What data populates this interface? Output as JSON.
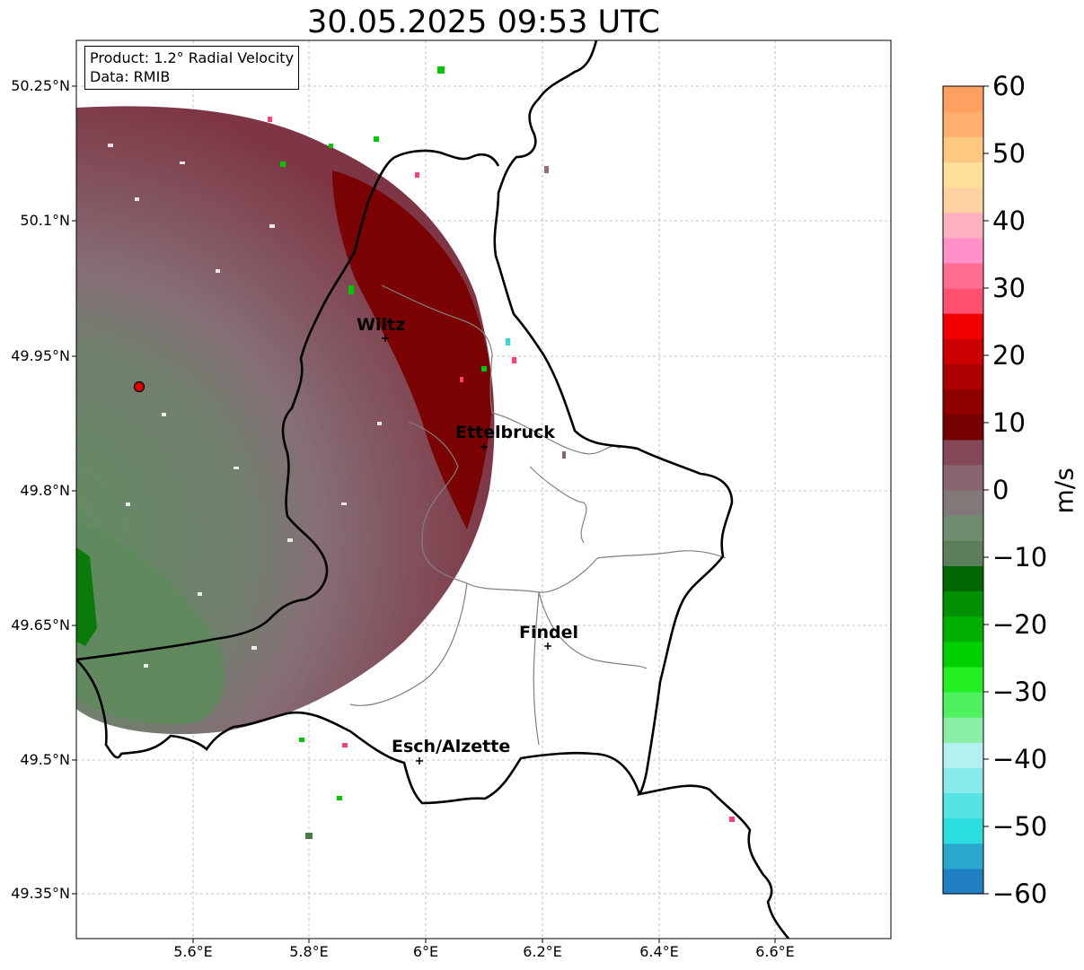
{
  "title": "30.05.2025 09:53 UTC",
  "info": {
    "product": "Product: 1.2° Radial Velocity",
    "data": "Data: RMIB"
  },
  "axes": {
    "lat_ticks": [
      "50.25°N",
      "50.1°N",
      "49.95°N",
      "49.8°N",
      "49.65°N",
      "49.5°N",
      "49.35°N"
    ],
    "lon_ticks": [
      "5.6°E",
      "5.8°E",
      "6°E",
      "6.2°E",
      "6.4°E",
      "6.6°E"
    ]
  },
  "cities": [
    {
      "name": "Wiltz",
      "lon": 5.93,
      "lat": 49.966
    },
    {
      "name": "Ettelbruck",
      "lon": 6.1,
      "lat": 49.848
    },
    {
      "name": "Findel",
      "lon": 6.21,
      "lat": 49.627
    },
    {
      "name": "Esch/Alzette",
      "lon": 5.99,
      "lat": 49.5
    }
  ],
  "radar_site": {
    "lon": 5.505,
    "lat": 49.914
  },
  "colorbar": {
    "label": "m/s",
    "ticks": [
      "60",
      "50",
      "40",
      "30",
      "20",
      "10",
      "0",
      "−10",
      "−20",
      "−30",
      "−40",
      "−50",
      "−60"
    ],
    "min": -60,
    "max": 60,
    "colors": [
      "#1f7fc0",
      "#28a8cc",
      "#2cdde0",
      "#55e4e4",
      "#88eaea",
      "#b5f0f0",
      "#8aeea8",
      "#50f060",
      "#22f022",
      "#00d000",
      "#00b000",
      "#009000",
      "#006600",
      "#5a7f5a",
      "#6e8c6e",
      "#827878",
      "#876670",
      "#844858",
      "#740000",
      "#8e0000",
      "#ac0000",
      "#cc0000",
      "#f00000",
      "#ff5070",
      "#ff6e90",
      "#ff90c8",
      "#ffb0c0",
      "#ffd0a0",
      "#ffe098",
      "#ffc880",
      "#ffb070",
      "#ffa060"
    ]
  }
}
